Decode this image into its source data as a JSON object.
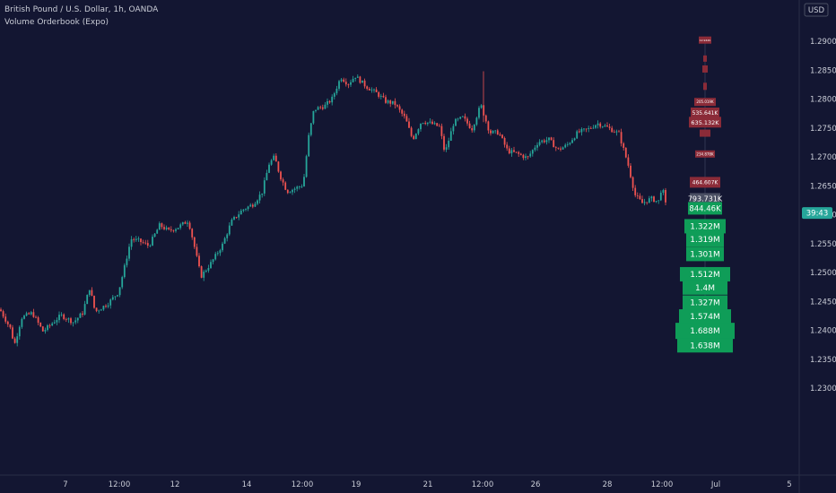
{
  "header": {
    "symbol_title": "British Pound / U.S. Dollar, 1h, OANDA",
    "indicator_title": "Volume Orderbook (Expo)"
  },
  "currency_badge": "USD",
  "countdown": "39:43",
  "colors": {
    "background": "#131632",
    "up": "#26a69a",
    "down": "#ef5350",
    "ask_level": "#8b2b38",
    "bid_level": "#0f9d58",
    "current_level": "#4a4f63",
    "countdown_bg": "#26a69a"
  },
  "chart_data": {
    "type": "candlestick",
    "y_axis": {
      "ticks": [
        "1.23000",
        "1.23500",
        "1.24000",
        "1.24500",
        "1.25000",
        "1.25500",
        "1.26000",
        "1.26500",
        "1.27000",
        "1.27500",
        "1.28000",
        "1.28500",
        "1.29000"
      ],
      "range": [
        1.2275,
        1.2925
      ]
    },
    "x_axis": {
      "ticks": [
        "7",
        "12:00",
        "12",
        "14",
        "12:00",
        "19",
        "21",
        "12:00",
        "26",
        "28",
        "12:00",
        "Jul",
        "5"
      ]
    },
    "price_path": [
      [
        0,
        1.2436
      ],
      [
        12,
        1.2402
      ],
      [
        16,
        1.2374
      ],
      [
        24,
        1.2422
      ],
      [
        36,
        1.243
      ],
      [
        48,
        1.2398
      ],
      [
        58,
        1.2412
      ],
      [
        68,
        1.2426
      ],
      [
        82,
        1.2414
      ],
      [
        92,
        1.243
      ],
      [
        100,
        1.2474
      ],
      [
        106,
        1.2432
      ],
      [
        120,
        1.2446
      ],
      [
        132,
        1.2466
      ],
      [
        138,
        1.2504
      ],
      [
        146,
        1.2558
      ],
      [
        156,
        1.2554
      ],
      [
        166,
        1.2546
      ],
      [
        178,
        1.2582
      ],
      [
        188,
        1.2572
      ],
      [
        198,
        1.2578
      ],
      [
        210,
        1.259
      ],
      [
        216,
        1.255
      ],
      [
        224,
        1.2493
      ],
      [
        236,
        1.2518
      ],
      [
        248,
        1.2548
      ],
      [
        258,
        1.2588
      ],
      [
        270,
        1.2608
      ],
      [
        282,
        1.2618
      ],
      [
        292,
        1.2638
      ],
      [
        300,
        1.2688
      ],
      [
        306,
        1.27
      ],
      [
        312,
        1.2668
      ],
      [
        320,
        1.264
      ],
      [
        330,
        1.2646
      ],
      [
        338,
        1.2652
      ],
      [
        344,
        1.2734
      ],
      [
        350,
        1.2782
      ],
      [
        362,
        1.2788
      ],
      [
        370,
        1.28
      ],
      [
        380,
        1.2838
      ],
      [
        388,
        1.2826
      ],
      [
        396,
        1.284
      ],
      [
        408,
        1.2822
      ],
      [
        420,
        1.281
      ],
      [
        430,
        1.2796
      ],
      [
        440,
        1.2792
      ],
      [
        452,
        1.2766
      ],
      [
        460,
        1.273
      ],
      [
        470,
        1.2762
      ],
      [
        480,
        1.2758
      ],
      [
        490,
        1.2752
      ],
      [
        496,
        1.2706
      ],
      [
        506,
        1.276
      ],
      [
        516,
        1.2768
      ],
      [
        526,
        1.2748
      ],
      [
        536,
        1.279
      ],
      [
        546,
        1.2742
      ],
      [
        556,
        1.2742
      ],
      [
        566,
        1.271
      ],
      [
        576,
        1.2706
      ],
      [
        588,
        1.2698
      ],
      [
        600,
        1.2726
      ],
      [
        612,
        1.273
      ],
      [
        622,
        1.2712
      ],
      [
        632,
        1.272
      ],
      [
        644,
        1.2742
      ],
      [
        656,
        1.2748
      ],
      [
        666,
        1.2758
      ],
      [
        676,
        1.2752
      ],
      [
        690,
        1.274
      ],
      [
        700,
        1.2688
      ],
      [
        708,
        1.2634
      ],
      [
        716,
        1.262
      ],
      [
        726,
        1.2628
      ],
      [
        734,
        1.2622
      ],
      [
        738,
        1.265
      ],
      [
        744,
        1.2602
      ]
    ],
    "orderbook_levels": [
      {
        "price": 1.2902,
        "volume": "12.942K",
        "side": "ask",
        "width": 14,
        "height": 8,
        "font": 3
      },
      {
        "price": 1.287,
        "volume": "",
        "side": "ask",
        "width": 4,
        "height": 7,
        "font": 3
      },
      {
        "price": 1.2852,
        "volume": "",
        "side": "ask",
        "width": 6,
        "height": 8,
        "font": 3
      },
      {
        "price": 1.2822,
        "volume": "",
        "side": "ask",
        "width": 4,
        "height": 8,
        "font": 3
      },
      {
        "price": 1.2795,
        "volume": "205.019K",
        "side": "ask",
        "width": 24,
        "height": 9,
        "font": 4
      },
      {
        "price": 1.2776,
        "volume": "535.641K",
        "side": "ask",
        "width": 32,
        "height": 12,
        "font": 6
      },
      {
        "price": 1.276,
        "volume": "635.132K",
        "side": "ask",
        "width": 36,
        "height": 12,
        "font": 6.5
      },
      {
        "price": 1.2741,
        "volume": "",
        "side": "ask",
        "width": 12,
        "height": 8,
        "font": 3
      },
      {
        "price": 1.2705,
        "volume": "234.878K",
        "side": "ask",
        "width": 22,
        "height": 8,
        "font": 4
      },
      {
        "price": 1.2656,
        "volume": "464.607K",
        "side": "ask",
        "width": 34,
        "height": 12,
        "font": 6
      },
      {
        "price": 1.2628,
        "volume": "793.731K",
        "side": "current",
        "width": 34,
        "height": 12,
        "font": 8
      },
      {
        "price": 1.2611,
        "volume": "844.46K",
        "side": "bid",
        "width": 38,
        "height": 14,
        "font": 8.5
      },
      {
        "price": 1.258,
        "volume": "1.322M",
        "side": "bid",
        "width": 46,
        "height": 16,
        "font": 9
      },
      {
        "price": 1.2557,
        "volume": "1.319M",
        "side": "bid",
        "width": 42,
        "height": 16,
        "font": 9
      },
      {
        "price": 1.2532,
        "volume": "1.301M",
        "side": "bid",
        "width": 42,
        "height": 16,
        "font": 9
      },
      {
        "price": 1.2497,
        "volume": "1.512M",
        "side": "bid",
        "width": 56,
        "height": 16,
        "font": 9
      },
      {
        "price": 1.2474,
        "volume": "1.4M",
        "side": "bid",
        "width": 50,
        "height": 16,
        "font": 9
      },
      {
        "price": 1.2448,
        "volume": "1.327M",
        "side": "bid",
        "width": 50,
        "height": 16,
        "font": 9
      },
      {
        "price": 1.2424,
        "volume": "1.574M",
        "side": "bid",
        "width": 58,
        "height": 16,
        "font": 9
      },
      {
        "price": 1.2399,
        "volume": "1.688M",
        "side": "bid",
        "width": 66,
        "height": 18,
        "font": 9
      },
      {
        "price": 1.2374,
        "volume": "1.638M",
        "side": "bid",
        "width": 62,
        "height": 16,
        "font": 9
      }
    ],
    "last_price": 1.2603
  }
}
